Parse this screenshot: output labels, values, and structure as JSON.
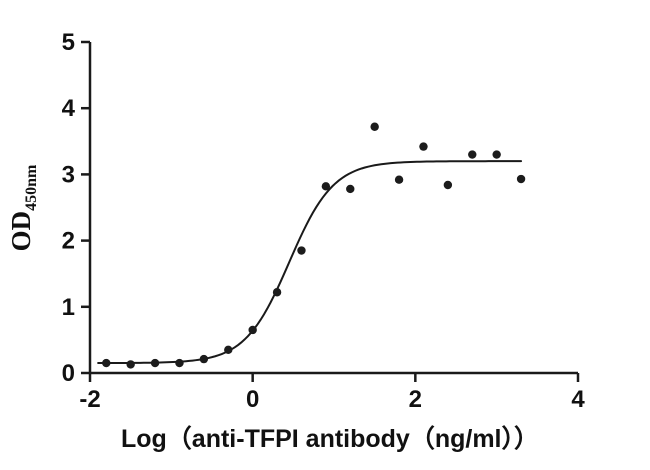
{
  "figure": {
    "background": "#ffffff",
    "axis_color": "#1a1a1a",
    "point_color": "#1c1c1c",
    "curve_color": "#1a1a1a"
  },
  "chart_data": {
    "type": "scatter",
    "title": "",
    "xlabel": "Log（anti-TFPI antibody（ng/ml））",
    "ylabel": "OD",
    "ylabel_sub": "450nm",
    "xlim": [
      -2,
      4
    ],
    "ylim": [
      0,
      5
    ],
    "xticks": [
      -2,
      0,
      2,
      4
    ],
    "yticks": [
      0,
      1,
      2,
      3,
      4,
      5
    ],
    "grid": false,
    "legend": "none",
    "points": [
      [
        -1.8,
        0.15
      ],
      [
        -1.5,
        0.13
      ],
      [
        -1.2,
        0.15
      ],
      [
        -0.9,
        0.15
      ],
      [
        -0.6,
        0.21
      ],
      [
        -0.3,
        0.35
      ],
      [
        0.0,
        0.65
      ],
      [
        0.3,
        1.22
      ],
      [
        0.6,
        1.85
      ],
      [
        0.9,
        2.82
      ],
      [
        1.2,
        2.78
      ],
      [
        1.5,
        3.72
      ],
      [
        1.8,
        2.92
      ],
      [
        2.1,
        3.42
      ],
      [
        2.4,
        2.84
      ],
      [
        2.7,
        3.3
      ],
      [
        3.0,
        3.3
      ],
      [
        3.3,
        2.93
      ]
    ],
    "fit": {
      "model": "4PL",
      "bottom": 0.15,
      "top": 3.2,
      "logec50": 0.45,
      "hillslope": 1.6,
      "xmin": -1.9,
      "xmax": 3.3
    }
  }
}
